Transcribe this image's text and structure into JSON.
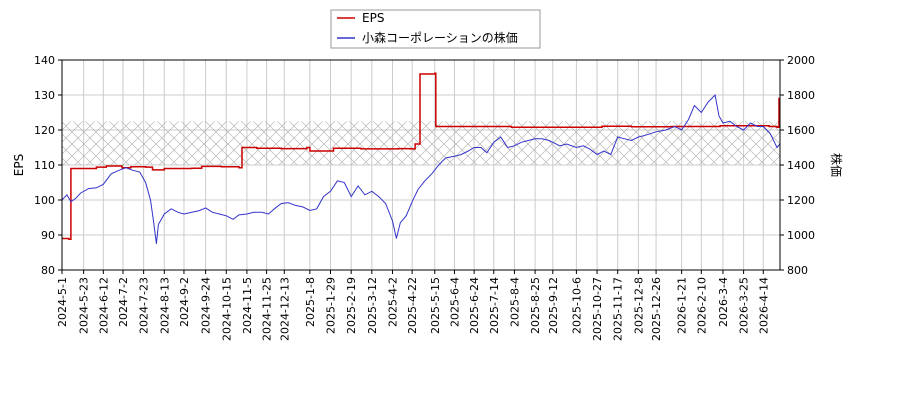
{
  "chart_data": {
    "type": "line",
    "xlabel": "",
    "ylabel_left": "EPS",
    "ylabel_right": "株価",
    "ylim_left": [
      80,
      140
    ],
    "ylim_right": [
      800,
      2000
    ],
    "yticks_left": [
      "80",
      "90",
      "100",
      "110",
      "120",
      "130",
      "140"
    ],
    "yticks_right": [
      "800",
      "1000",
      "1200",
      "1400",
      "1600",
      "1800",
      "2000"
    ],
    "x_range": [
      "2024-5-1",
      "2026-5-1"
    ],
    "x_tick_labels": [
      "2024-5-1",
      "2024-5-23",
      "2024-6-12",
      "2024-7-2",
      "2024-7-23",
      "2024-8-13",
      "2024-9-2",
      "2024-9-24",
      "2024-10-15",
      "2024-11-5",
      "2024-11-25",
      "2024-12-13",
      "2025-1-8",
      "2025-1-29",
      "2025-2-19",
      "2025-3-12",
      "2025-4-2",
      "2025-4-22",
      "2025-5-15",
      "2025-6-4",
      "2025-6-24",
      "2025-7-14",
      "2025-8-4",
      "2025-8-25",
      "2025-9-12",
      "2025-10-6",
      "2025-10-27",
      "2025-11-17",
      "2025-12-8",
      "2025-12-26",
      "2026-1-21",
      "2026-2-10",
      "2026-3-4",
      "2026-3-25",
      "2026-4-14"
    ],
    "grid": true,
    "legend_position": "top-center",
    "hatched_band_left": [
      110,
      122.5
    ],
    "series": [
      {
        "name": "EPS",
        "axis": "left",
        "color": "#cc0000",
        "points": [
          [
            "2024-5-1",
            89
          ],
          [
            "2024-5-8",
            88.8
          ],
          [
            "2024-5-10",
            109
          ],
          [
            "2024-6-5",
            109.4
          ],
          [
            "2024-6-15",
            109.7
          ],
          [
            "2024-7-1",
            109.2
          ],
          [
            "2024-7-10",
            109.5
          ],
          [
            "2024-7-25",
            109.4
          ],
          [
            "2024-8-1",
            108.6
          ],
          [
            "2024-8-13",
            109.0
          ],
          [
            "2024-9-10",
            109.1
          ],
          [
            "2024-9-20",
            109.6
          ],
          [
            "2024-10-10",
            109.5
          ],
          [
            "2024-10-28",
            109.2
          ],
          [
            "2024-10-31",
            115.0
          ],
          [
            "2024-11-15",
            114.8
          ],
          [
            "2024-12-10",
            114.7
          ],
          [
            "2025-1-5",
            115.0
          ],
          [
            "2025-1-8",
            114.0
          ],
          [
            "2025-2-1",
            114.8
          ],
          [
            "2025-3-1",
            114.6
          ],
          [
            "2025-4-8",
            114.7
          ],
          [
            "2025-4-20",
            114.6
          ],
          [
            "2025-4-25",
            116.0
          ],
          [
            "2025-4-30",
            136.0
          ],
          [
            "2025-5-15",
            136.2
          ],
          [
            "2025-5-16",
            121.0
          ],
          [
            "2025-7-1",
            121.0
          ],
          [
            "2025-8-1",
            120.8
          ],
          [
            "2025-10-1",
            120.8
          ],
          [
            "2025-11-1",
            121.1
          ],
          [
            "2025-12-1",
            120.9
          ],
          [
            "2026-1-10",
            121.0
          ],
          [
            "2026-3-1",
            121.2
          ],
          [
            "2026-4-20",
            121.0
          ],
          [
            "2026-4-28",
            120.8
          ],
          [
            "2026-4-30",
            129.0
          ]
        ]
      },
      {
        "name": "小森コーポレーションの株価",
        "axis": "right",
        "color": "#3333cc",
        "points": [
          [
            "2024-5-1",
            1200
          ],
          [
            "2024-5-6",
            1230
          ],
          [
            "2024-5-10",
            1190
          ],
          [
            "2024-5-15",
            1210
          ],
          [
            "2024-5-20",
            1240
          ],
          [
            "2024-5-28",
            1265
          ],
          [
            "2024-6-5",
            1270
          ],
          [
            "2024-6-12",
            1290
          ],
          [
            "2024-6-20",
            1350
          ],
          [
            "2024-6-28",
            1370
          ],
          [
            "2024-7-5",
            1385
          ],
          [
            "2024-7-12",
            1370
          ],
          [
            "2024-7-19",
            1360
          ],
          [
            "2024-7-25",
            1300
          ],
          [
            "2024-7-30",
            1200
          ],
          [
            "2024-8-2",
            1080
          ],
          [
            "2024-8-5",
            950
          ],
          [
            "2024-8-7",
            1060
          ],
          [
            "2024-8-13",
            1120
          ],
          [
            "2024-8-20",
            1150
          ],
          [
            "2024-8-27",
            1130
          ],
          [
            "2024-9-2",
            1120
          ],
          [
            "2024-9-10",
            1130
          ],
          [
            "2024-9-18",
            1140
          ],
          [
            "2024-9-24",
            1155
          ],
          [
            "2024-10-1",
            1130
          ],
          [
            "2024-10-8",
            1120
          ],
          [
            "2024-10-15",
            1110
          ],
          [
            "2024-10-22",
            1090
          ],
          [
            "2024-10-28",
            1115
          ],
          [
            "2024-11-5",
            1120
          ],
          [
            "2024-11-12",
            1130
          ],
          [
            "2024-11-20",
            1130
          ],
          [
            "2024-11-27",
            1120
          ],
          [
            "2024-12-3",
            1150
          ],
          [
            "2024-12-10",
            1180
          ],
          [
            "2024-12-17",
            1185
          ],
          [
            "2024-12-24",
            1170
          ],
          [
            "2025-1-1",
            1160
          ],
          [
            "2025-1-8",
            1140
          ],
          [
            "2025-1-15",
            1150
          ],
          [
            "2025-1-22",
            1220
          ],
          [
            "2025-1-29",
            1250
          ],
          [
            "2025-2-5",
            1310
          ],
          [
            "2025-2-12",
            1300
          ],
          [
            "2025-2-19",
            1220
          ],
          [
            "2025-2-26",
            1280
          ],
          [
            "2025-3-5",
            1230
          ],
          [
            "2025-3-12",
            1250
          ],
          [
            "2025-3-19",
            1220
          ],
          [
            "2025-3-26",
            1180
          ],
          [
            "2025-4-2",
            1080
          ],
          [
            "2025-4-6",
            980
          ],
          [
            "2025-4-10",
            1070
          ],
          [
            "2025-4-16",
            1110
          ],
          [
            "2025-4-22",
            1190
          ],
          [
            "2025-4-28",
            1260
          ],
          [
            "2025-5-5",
            1310
          ],
          [
            "2025-5-12",
            1350
          ],
          [
            "2025-5-19",
            1400
          ],
          [
            "2025-5-26",
            1440
          ],
          [
            "2025-6-4",
            1450
          ],
          [
            "2025-6-11",
            1460
          ],
          [
            "2025-6-18",
            1480
          ],
          [
            "2025-6-24",
            1500
          ],
          [
            "2025-7-1",
            1500
          ],
          [
            "2025-7-7",
            1470
          ],
          [
            "2025-7-14",
            1530
          ],
          [
            "2025-7-21",
            1560
          ],
          [
            "2025-7-28",
            1500
          ],
          [
            "2025-8-4",
            1510
          ],
          [
            "2025-8-11",
            1530
          ],
          [
            "2025-8-18",
            1540
          ],
          [
            "2025-8-25",
            1550
          ],
          [
            "2025-9-1",
            1550
          ],
          [
            "2025-9-8",
            1540
          ],
          [
            "2025-9-12",
            1530
          ],
          [
            "2025-9-19",
            1510
          ],
          [
            "2025-9-26",
            1520
          ],
          [
            "2025-10-6",
            1500
          ],
          [
            "2025-10-13",
            1510
          ],
          [
            "2025-10-20",
            1490
          ],
          [
            "2025-10-27",
            1460
          ],
          [
            "2025-11-3",
            1480
          ],
          [
            "2025-11-10",
            1460
          ],
          [
            "2025-11-17",
            1560
          ],
          [
            "2025-11-24",
            1550
          ],
          [
            "2025-12-1",
            1540
          ],
          [
            "2025-12-8",
            1560
          ],
          [
            "2025-12-15",
            1570
          ],
          [
            "2025-12-26",
            1590
          ],
          [
            "2026-1-5",
            1600
          ],
          [
            "2026-1-14",
            1620
          ],
          [
            "2026-1-21",
            1600
          ],
          [
            "2026-1-28",
            1660
          ],
          [
            "2026-2-3",
            1740
          ],
          [
            "2026-2-10",
            1700
          ],
          [
            "2026-2-17",
            1760
          ],
          [
            "2026-2-24",
            1800
          ],
          [
            "2026-2-28",
            1680
          ],
          [
            "2026-3-4",
            1640
          ],
          [
            "2026-3-11",
            1650
          ],
          [
            "2026-3-18",
            1620
          ],
          [
            "2026-3-25",
            1600
          ],
          [
            "2026-4-1",
            1640
          ],
          [
            "2026-4-8",
            1620
          ],
          [
            "2026-4-14",
            1620
          ],
          [
            "2026-4-21",
            1580
          ],
          [
            "2026-4-28",
            1500
          ],
          [
            "2026-5-1",
            1520
          ]
        ]
      }
    ]
  }
}
